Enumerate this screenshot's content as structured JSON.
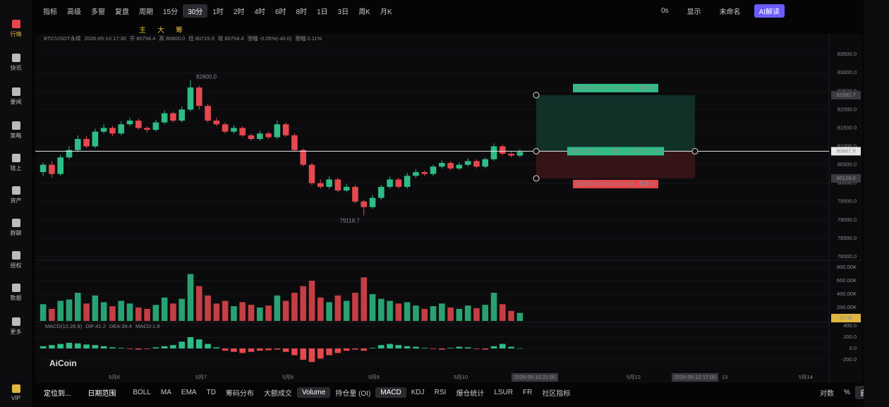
{
  "app": {
    "sidebar": [
      "行情",
      "快讯",
      "要闻",
      "策略",
      "链上",
      "资产",
      "群聊",
      "授权",
      "数据",
      "更多",
      "VIP"
    ],
    "top_left": [
      "指标",
      "高级",
      "多窗",
      "复盘",
      "周期"
    ],
    "periods": [
      "15分",
      "30分",
      "1时",
      "2时",
      "4时",
      "6时",
      "8时",
      "1日",
      "3日",
      "周K",
      "月K"
    ],
    "active_period": 1,
    "top_right": [
      "0s",
      "显示",
      "未命名",
      "AI解读"
    ],
    "draw_tools": [
      "主",
      "大",
      "筹"
    ],
    "bottom_left": [
      "定位到...",
      "日期范围"
    ],
    "bottom_items": [
      "BOLL",
      "MA",
      "EMA",
      "TD",
      "筹码分布",
      "大额成交",
      "Volume",
      "持仓量 (OI)",
      "MACD",
      "KDJ",
      "RSI",
      "爆仓统计",
      "LSUR",
      "FR",
      "社区指标"
    ],
    "bottom_active": [
      6,
      8
    ],
    "bottom_right": [
      "对数",
      "%",
      "自动"
    ],
    "logo": "AiCoin"
  },
  "chart_data": {
    "type": "candlestick",
    "info": [
      "BTC/USDT永续",
      "2026-05-10 17:30",
      "开 80794.4",
      "高 80800.0",
      "低 80715.0",
      "收 80754.4",
      "涨幅 -0.05%(-40.0)",
      "振幅 0.11%"
    ],
    "up_color": "#2ebd85",
    "down_color": "#e5484d",
    "ylim": [
      77980,
      83790
    ],
    "yticks": [
      {
        "value": 83500,
        "label": "83500.0"
      },
      {
        "value": 83000,
        "label": "83000.0"
      },
      {
        "value": 82500,
        "label": "82500.0"
      },
      {
        "value": 82000,
        "label": "82000.0"
      },
      {
        "value": 81500,
        "label": "81500.0"
      },
      {
        "value": 81000,
        "label": "81000.0"
      },
      {
        "value": 80500,
        "label": "80500.0"
      },
      {
        "value": 80000,
        "label": "80000.0"
      },
      {
        "value": 79500,
        "label": "79500.0"
      },
      {
        "value": 79000,
        "label": "79000.0"
      },
      {
        "value": 78500,
        "label": "78500.0"
      },
      {
        "value": 78000,
        "label": "78000.0"
      }
    ],
    "candles": [
      [
        80300,
        80560,
        80200,
        80500
      ],
      [
        80500,
        80600,
        80150,
        80250
      ],
      [
        80250,
        80780,
        80200,
        80700
      ],
      [
        80700,
        81000,
        80650,
        80900
      ],
      [
        80900,
        81300,
        80850,
        81200
      ],
      [
        81200,
        81280,
        80950,
        81000
      ],
      [
        81000,
        81480,
        80950,
        81400
      ],
      [
        81400,
        81600,
        81350,
        81500
      ],
      [
        81500,
        81560,
        81280,
        81350
      ],
      [
        81350,
        81680,
        81300,
        81600
      ],
      [
        81600,
        81780,
        81550,
        81700
      ],
      [
        81700,
        81750,
        81450,
        81500
      ],
      [
        81500,
        81550,
        81380,
        81450
      ],
      [
        81450,
        81720,
        81400,
        81650
      ],
      [
        81650,
        81980,
        81600,
        81900
      ],
      [
        81900,
        81950,
        81650,
        81700
      ],
      [
        81700,
        82080,
        81650,
        82000
      ],
      [
        82000,
        82800,
        81950,
        82600
      ],
      [
        82600,
        82650,
        82000,
        82100
      ],
      [
        82100,
        82150,
        81650,
        81700
      ],
      [
        81700,
        81780,
        81550,
        81600
      ],
      [
        81600,
        81650,
        81350,
        81400
      ],
      [
        81400,
        81580,
        81350,
        81500
      ],
      [
        81500,
        81550,
        81250,
        81300
      ],
      [
        81300,
        81350,
        81150,
        81200
      ],
      [
        81200,
        81420,
        81150,
        81350
      ],
      [
        81350,
        81400,
        81200,
        81250
      ],
      [
        81250,
        81700,
        81200,
        81600
      ],
      [
        81600,
        81650,
        81250,
        81300
      ],
      [
        81300,
        81350,
        80850,
        80900
      ],
      [
        80900,
        80950,
        80450,
        80500
      ],
      [
        80500,
        80550,
        79950,
        80000
      ],
      [
        80000,
        80100,
        79850,
        79900
      ],
      [
        79900,
        80180,
        79850,
        80100
      ],
      [
        80100,
        80150,
        79750,
        79800
      ],
      [
        79800,
        79980,
        79750,
        79900
      ],
      [
        79900,
        79950,
        79450,
        79500
      ],
      [
        79500,
        79550,
        79118.7,
        79350
      ],
      [
        79350,
        79680,
        79300,
        79600
      ],
      [
        79600,
        79950,
        79550,
        79900
      ],
      [
        79900,
        80180,
        79850,
        80100
      ],
      [
        80100,
        80150,
        79850,
        79900
      ],
      [
        79900,
        80280,
        79850,
        80200
      ],
      [
        80200,
        80380,
        80150,
        80300
      ],
      [
        80300,
        80350,
        80200,
        80250
      ],
      [
        80250,
        80500,
        80200,
        80450
      ],
      [
        80450,
        80620,
        80400,
        80550
      ],
      [
        80550,
        80600,
        80350,
        80400
      ],
      [
        80400,
        80560,
        80350,
        80500
      ],
      [
        80500,
        80680,
        80450,
        80600
      ],
      [
        80600,
        80650,
        80400,
        80450
      ],
      [
        80450,
        80700,
        80400,
        80650
      ],
      [
        80650,
        81080,
        80600,
        81000
      ],
      [
        81000,
        81050,
        80750,
        80800
      ],
      [
        80800,
        80850,
        80700,
        80750
      ],
      [
        80750,
        80920,
        80700,
        80850
      ]
    ],
    "annotations": [
      "82800.0",
      "79118.7"
    ],
    "position": {
      "take_profit": {
        "value": 82392.7,
        "label": "82392.7"
      },
      "entry": {
        "value": 80867.9,
        "label": "80867.9"
      },
      "stop_loss": {
        "value": 80129.0,
        "label": "80129.0"
      },
      "tp_text": "止盈价: 82392.7 (1.89%)，数量: 0",
      "entry_text": "未开仓 盈亏: --，仓量: --，盈亏比: 2.06",
      "sl_text": "止损价: 80129.0 (0.91%)，数量: 0"
    },
    "x_labels": [
      "5月6",
      "5月7",
      "5月8",
      "5月9",
      "5月10",
      "5月12",
      "13",
      "5月14"
    ],
    "crosshair_labels": [
      "2026-05-10 21:00",
      "2026-05-12 17:00"
    ],
    "volume": {
      "ylim": [
        0,
        800
      ],
      "yticks": [
        {
          "value": 800,
          "label": "800.00K"
        },
        {
          "value": 600,
          "label": "600.00K"
        },
        {
          "value": 400,
          "label": "400.00K"
        },
        {
          "value": 200,
          "label": "200.00K"
        }
      ],
      "values": [
        250,
        180,
        300,
        320,
        420,
        260,
        380,
        280,
        220,
        300,
        260,
        200,
        180,
        240,
        350,
        260,
        330,
        700,
        520,
        380,
        260,
        300,
        220,
        280,
        240,
        200,
        230,
        380,
        300,
        420,
        520,
        600,
        350,
        280,
        380,
        300,
        420,
        650,
        400,
        330,
        300,
        260,
        280,
        230,
        180,
        220,
        260,
        200,
        180,
        230,
        190,
        240,
        420,
        250,
        150,
        120
      ],
      "last": {
        "value": 42.9,
        "label": "42.9k"
      }
    },
    "macd": {
      "title": "MACD(12,26,9)",
      "dif": "DIF:41.2",
      "dea": "DEA:39.4",
      "hist": "MACD:1.8",
      "ylim": [
        -300,
        400
      ],
      "yticks": [
        {
          "value": 400,
          "label": "400.0"
        },
        {
          "value": 200,
          "label": "200.0"
        },
        {
          "value": 0,
          "label": "0.0"
        },
        {
          "value": -200,
          "label": "-200.0"
        }
      ],
      "values": [
        40,
        60,
        80,
        100,
        90,
        70,
        60,
        40,
        20,
        10,
        -10,
        -20,
        -10,
        20,
        40,
        60,
        120,
        200,
        160,
        80,
        20,
        -40,
        -60,
        -80,
        -60,
        -40,
        -30,
        -20,
        -60,
        -120,
        -200,
        -240,
        -180,
        -120,
        -80,
        -40,
        -20,
        -40,
        10,
        60,
        80,
        60,
        40,
        30,
        10,
        -10,
        -20,
        10,
        30,
        20,
        -10,
        -20,
        40,
        80,
        30,
        2
      ]
    }
  }
}
